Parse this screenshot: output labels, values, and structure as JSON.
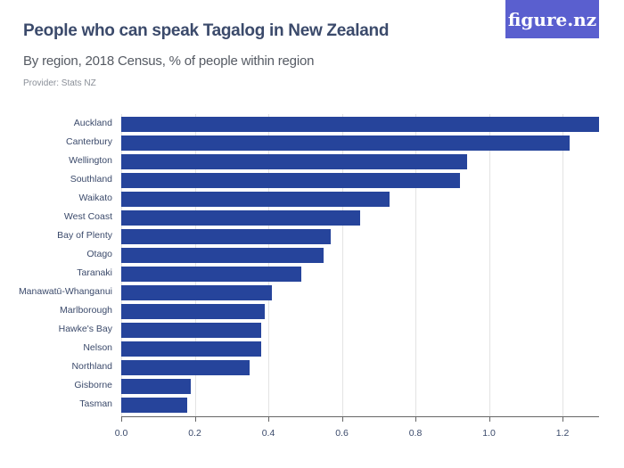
{
  "header": {
    "title": "People who can speak Tagalog in New Zealand",
    "subtitle": "By region, 2018 Census, % of people within region",
    "provider": "Provider: Stats NZ",
    "logo": "figure.nz"
  },
  "colors": {
    "bar": "#26449b",
    "logo_bg": "#5a5fcf",
    "title": "#3b4a6b"
  },
  "chart_data": {
    "type": "bar",
    "orientation": "horizontal",
    "title": "People who can speak Tagalog in New Zealand",
    "subtitle": "By region, 2018 Census, % of people within region",
    "xlabel": "",
    "ylabel": "",
    "xlim": [
      0,
      1.3
    ],
    "xticks": [
      "0.0",
      "0.2",
      "0.4",
      "0.6",
      "0.8",
      "1.0",
      "1.2"
    ],
    "grid": true,
    "categories": [
      "Auckland",
      "Canterbury",
      "Wellington",
      "Southland",
      "Waikato",
      "West Coast",
      "Bay of Plenty",
      "Otago",
      "Taranaki",
      "Manawatū-Whanganui",
      "Marlborough",
      "Hawke's Bay",
      "Nelson",
      "Northland",
      "Gisborne",
      "Tasman"
    ],
    "values": [
      1.3,
      1.22,
      0.94,
      0.92,
      0.73,
      0.65,
      0.57,
      0.55,
      0.49,
      0.41,
      0.39,
      0.38,
      0.38,
      0.35,
      0.19,
      0.18
    ]
  }
}
